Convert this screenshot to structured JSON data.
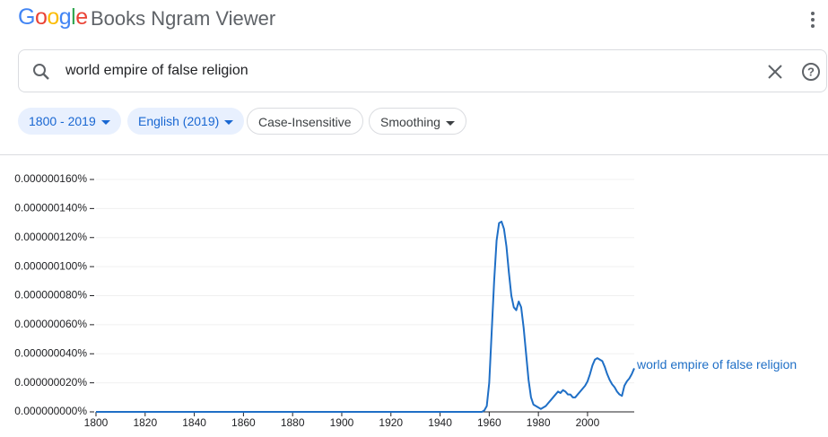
{
  "header": {
    "logo": "Google",
    "title": "Books Ngram Viewer"
  },
  "search": {
    "query": "world empire of false religion"
  },
  "filters": [
    "1800 - 2019",
    "English (2019)",
    "Case-Insensitive",
    "Smoothing"
  ],
  "chart_data": {
    "type": "line",
    "x": [
      1800,
      1957,
      1958,
      1959,
      1960,
      1961,
      1962,
      1963,
      1964,
      1965,
      1966,
      1967,
      1968,
      1969,
      1970,
      1971,
      1972,
      1973,
      1974,
      1975,
      1976,
      1977,
      1978,
      1979,
      1980,
      1981,
      1982,
      1983,
      1984,
      1985,
      1986,
      1987,
      1988,
      1989,
      1990,
      1991,
      1992,
      1993,
      1994,
      1995,
      1996,
      1997,
      1998,
      1999,
      2000,
      2001,
      2002,
      2003,
      2004,
      2005,
      2006,
      2007,
      2008,
      2009,
      2010,
      2011,
      2012,
      2013,
      2014,
      2015,
      2016,
      2017,
      2018,
      2019
    ],
    "series": [
      {
        "name": "world empire of false religion",
        "color": "#1f6fc6",
        "values": [
          0,
          0,
          1e-09,
          4e-09,
          2e-08,
          5.5e-08,
          9e-08,
          1.18e-07,
          1.3e-07,
          1.31e-07,
          1.26e-07,
          1.14e-07,
          9.6e-08,
          8e-08,
          7.2e-08,
          7e-08,
          7.6e-08,
          7.2e-08,
          5.8e-08,
          4e-08,
          2.2e-08,
          1e-08,
          5e-09,
          4e-09,
          3e-09,
          2e-09,
          3e-09,
          4e-09,
          6e-09,
          8e-09,
          1e-08,
          1.2e-08,
          1.4e-08,
          1.3e-08,
          1.5e-08,
          1.4e-08,
          1.2e-08,
          1.2e-08,
          1e-08,
          1e-08,
          1.2e-08,
          1.4e-08,
          1.6e-08,
          1.8e-08,
          2.1e-08,
          2.6e-08,
          3.2e-08,
          3.6e-08,
          3.7e-08,
          3.6e-08,
          3.5e-08,
          3.1e-08,
          2.6e-08,
          2.2e-08,
          1.9e-08,
          1.7e-08,
          1.4e-08,
          1.2e-08,
          1.1e-08,
          1.8e-08,
          2.1e-08,
          2.3e-08,
          2.6e-08,
          3e-08
        ]
      }
    ],
    "xlim": [
      1800,
      2019
    ],
    "xticks": [
      1800,
      1820,
      1840,
      1860,
      1880,
      1900,
      1920,
      1940,
      1960,
      1980,
      2000
    ],
    "ylim": [
      0,
      1.6e-07
    ],
    "yticks": [
      {
        "value": 0,
        "label": "0.000000000%"
      },
      {
        "value": 2e-08,
        "label": "0.000000020%"
      },
      {
        "value": 4e-08,
        "label": "0.000000040%"
      },
      {
        "value": 6e-08,
        "label": "0.000000060%"
      },
      {
        "value": 8e-08,
        "label": "0.000000080%"
      },
      {
        "value": 1e-07,
        "label": "0.000000100%"
      },
      {
        "value": 1.2e-07,
        "label": "0.000000120%"
      },
      {
        "value": 1.4e-07,
        "label": "0.000000140%"
      },
      {
        "value": 1.6e-07,
        "label": "0.000000160%"
      }
    ],
    "grid": true
  }
}
